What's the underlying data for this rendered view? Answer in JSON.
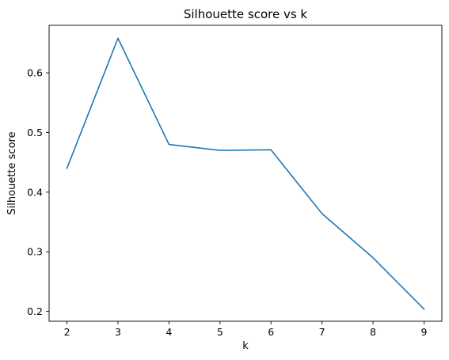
{
  "chart_data": {
    "type": "line",
    "title": "Silhouette score vs k",
    "xlabel": "k",
    "ylabel": "Silhouette score",
    "x": [
      2,
      3,
      4,
      5,
      6,
      7,
      8,
      9
    ],
    "series": [
      {
        "values": [
          0.44,
          0.658,
          0.48,
          0.47,
          0.471,
          0.364,
          0.29,
          0.204
        ],
        "color": "#1f77b4"
      }
    ],
    "xticks": [
      "2",
      "3",
      "4",
      "5",
      "6",
      "7",
      "8",
      "9"
    ],
    "yticks": [
      "0.2",
      "0.3",
      "0.4",
      "0.5",
      "0.6"
    ],
    "xlim": [
      1.65,
      9.35
    ],
    "ylim": [
      0.1836,
      0.6797
    ],
    "grid": false
  }
}
